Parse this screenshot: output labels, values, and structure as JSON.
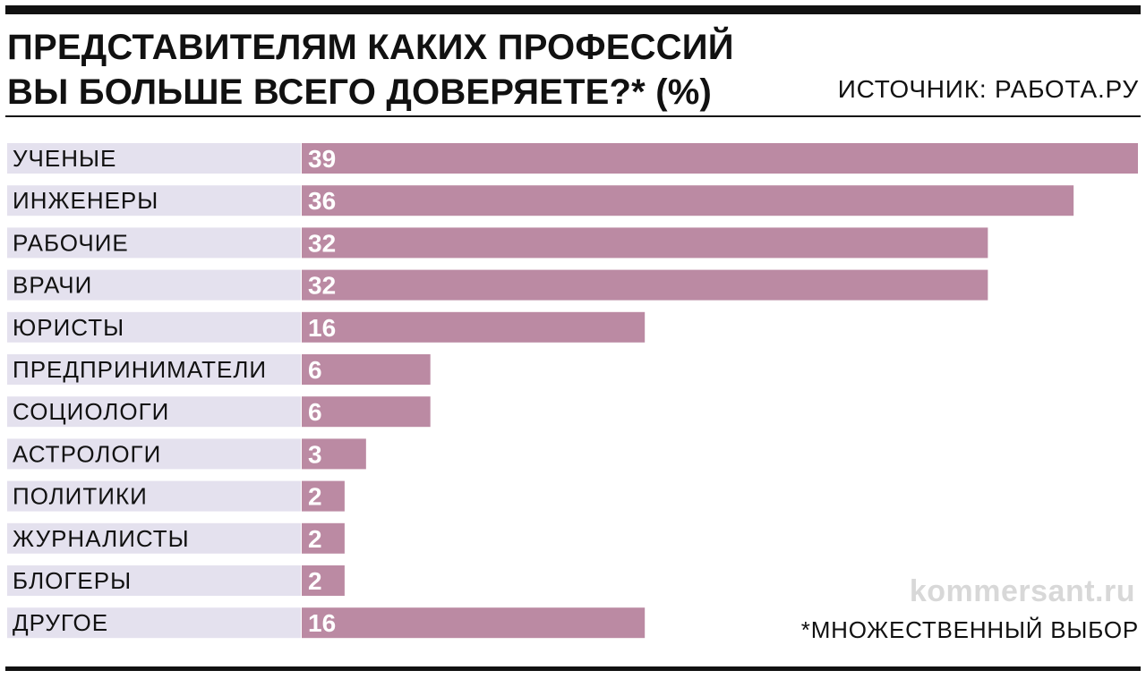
{
  "title_lines": [
    "ПРЕДСТАВИТЕЛЯМ КАКИХ ПРОФЕССИЙ",
    "ВЫ БОЛЬШЕ ВСЕГО ДОВЕРЯЕТЕ?* (%)"
  ],
  "source": "ИСТОЧНИК: РАБОТА.РУ",
  "watermark": "kommersant.ru",
  "footnote": "*МНОЖЕСТВЕННЫЙ ВЫБОР",
  "colors": {
    "bar": "#bb8aa3",
    "label_bg": "#e4e1ee",
    "rule": "#111111"
  },
  "chart_data": {
    "type": "bar",
    "orientation": "horizontal",
    "categories": [
      "УЧЕНЫЕ",
      "ИНЖЕНЕРЫ",
      "РАБОЧИЕ",
      "ВРАЧИ",
      "ЮРИСТЫ",
      "ПРЕДПРИНИМАТЕЛИ",
      "СОЦИОЛОГИ",
      "АСТРОЛОГИ",
      "ПОЛИТИКИ",
      "ЖУРНАЛИСТЫ",
      "БЛОГЕРЫ",
      "ДРУГОЕ"
    ],
    "values": [
      39,
      36,
      32,
      32,
      16,
      6,
      6,
      3,
      2,
      2,
      2,
      16
    ],
    "value_labels": [
      "39",
      "36",
      "32",
      "32",
      "16",
      "6",
      "6",
      "3",
      "2",
      "2",
      "2",
      "16"
    ],
    "xlim": [
      0,
      39
    ],
    "grid": false,
    "legend": "none"
  }
}
